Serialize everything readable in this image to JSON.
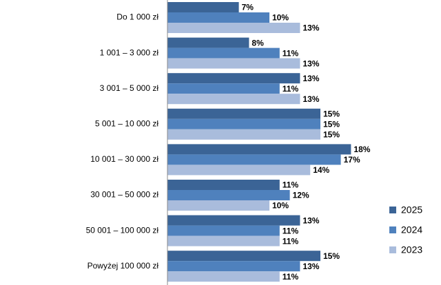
{
  "chart_data": {
    "type": "bar",
    "orientation": "horizontal",
    "categories": [
      "Do 1 000 zł",
      "1 001 – 3 000 zł",
      "3 001 – 5 000 zł",
      "5 001 – 10 000 zł",
      "10 001 – 30 000 zł",
      "30 001 – 50 000 zł",
      "50 001 – 100 000 zł",
      "Powyżej 100 000 zł"
    ],
    "series": [
      {
        "name": "2025",
        "color": "#3b6496",
        "values": [
          7,
          8,
          13,
          15,
          18,
          11,
          13,
          15
        ],
        "value_labels": [
          "7%",
          "8%",
          "13%",
          "15%",
          "18%",
          "11%",
          "13%",
          "15%"
        ]
      },
      {
        "name": "2024",
        "color": "#4f81bd",
        "values": [
          10,
          11,
          11,
          15,
          17,
          12,
          11,
          13
        ],
        "value_labels": [
          "10%",
          "11%",
          "11%",
          "15%",
          "17%",
          "12%",
          "11%",
          "13%"
        ]
      },
      {
        "name": "2023",
        "color": "#a9bcdc",
        "values": [
          13,
          13,
          13,
          15,
          14,
          10,
          11,
          11
        ],
        "value_labels": [
          "13%",
          "13%",
          "13%",
          "15%",
          "14%",
          "10%",
          "11%",
          "11%"
        ]
      }
    ],
    "xlim": [
      0,
      20
    ],
    "legend": "right"
  }
}
